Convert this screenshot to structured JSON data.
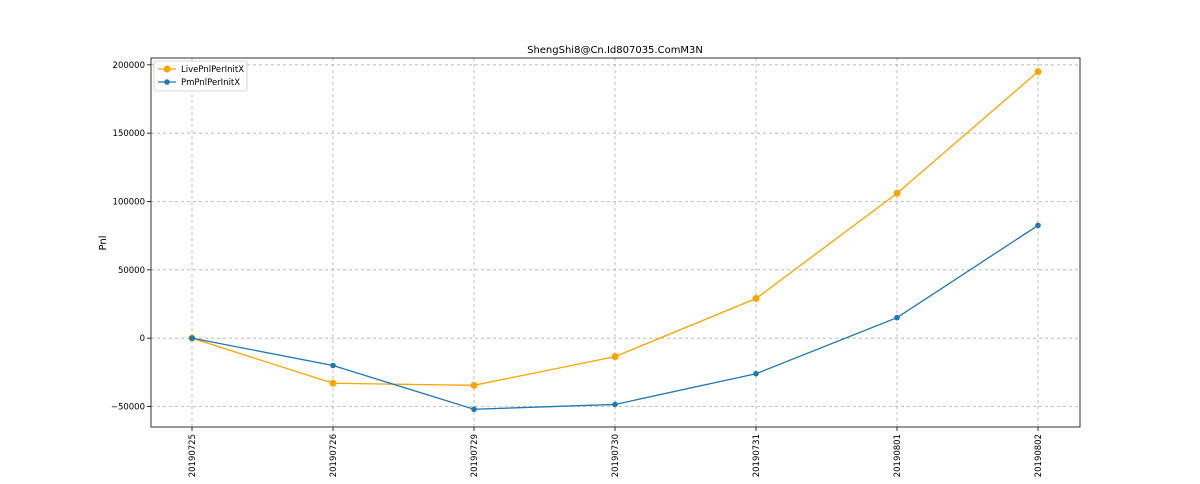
{
  "chart_data": {
    "type": "line",
    "title": "ShengShi8@Cn.Id807035.ComM3N",
    "xlabel": "",
    "ylabel": "Pnl",
    "categories": [
      "20190725",
      "20190726",
      "20190729",
      "20190730",
      "20190731",
      "20190801",
      "20190802"
    ],
    "ylim": [
      -65000,
      205000
    ],
    "yticks": [
      -50000,
      0,
      50000,
      100000,
      150000,
      200000
    ],
    "ytick_labels": [
      "−50000",
      "0",
      "50000",
      "100000",
      "150000",
      "200000"
    ],
    "grid": true,
    "legend_position": "top-left",
    "series": [
      {
        "name": "LivePnlPerInitX",
        "color": "#ffa500",
        "values": [
          0,
          -33000,
          -34500,
          -13500,
          29000,
          106000,
          195000
        ]
      },
      {
        "name": "PmPnlPerInitX",
        "color": "#1f77b4",
        "values": [
          0,
          -20000,
          -52000,
          -48500,
          -26000,
          15000,
          82500
        ]
      }
    ]
  }
}
